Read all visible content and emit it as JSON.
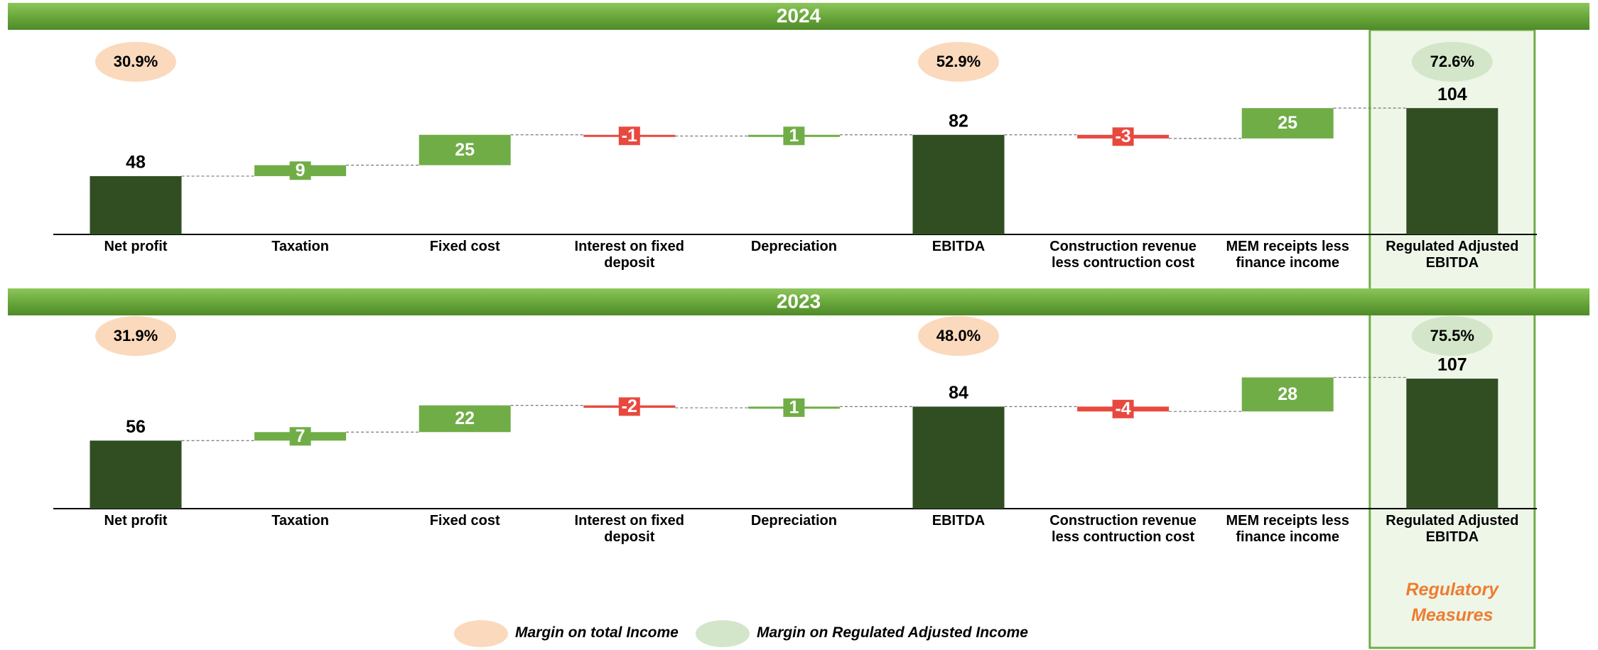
{
  "chart_data": [
    {
      "type": "waterfall",
      "title": "2024",
      "categories": [
        "Net profit",
        "Taxation",
        "Fixed cost",
        "Interest on fixed deposit",
        "Depreciation",
        "EBITDA",
        "Construction revenue less contruction cost",
        "MEM receipts less finance income",
        "Regulated Adjusted EBITDA"
      ],
      "values": [
        48,
        9,
        25,
        -1,
        1,
        82,
        -3,
        25,
        104
      ],
      "measure": [
        "absolute",
        "relative",
        "relative",
        "relative",
        "relative",
        "absolute",
        "relative",
        "relative",
        "absolute"
      ],
      "colors": {
        "total": "#314e23",
        "increase": "#70ad47",
        "decrease": "#e8493f"
      },
      "margins": [
        {
          "at": 0,
          "kind": 0,
          "value": 30.9,
          "label": "30.9%"
        },
        {
          "at": 5,
          "kind": 0,
          "value": 52.9,
          "label": "52.9%"
        },
        {
          "at": 8,
          "kind": 1,
          "value": 72.6,
          "label": "72.6%"
        }
      ]
    },
    {
      "type": "waterfall",
      "title": "2023",
      "categories": [
        "Net profit",
        "Taxation",
        "Fixed cost",
        "Interest on fixed deposit",
        "Depreciation",
        "EBITDA",
        "Construction revenue less contruction cost",
        "MEM receipts less finance income",
        "Regulated Adjusted EBITDA"
      ],
      "values": [
        56,
        7,
        22,
        -2,
        1,
        84,
        -4,
        28,
        107
      ],
      "measure": [
        "absolute",
        "relative",
        "relative",
        "relative",
        "relative",
        "absolute",
        "relative",
        "relative",
        "absolute"
      ],
      "colors": {
        "total": "#314e23",
        "increase": "#70ad47",
        "decrease": "#e8493f"
      },
      "margins": [
        {
          "at": 0,
          "kind": 0,
          "value": 31.9,
          "label": "31.9%"
        },
        {
          "at": 5,
          "kind": 0,
          "value": 48.0,
          "label": "48.0%"
        },
        {
          "at": 8,
          "kind": 1,
          "value": 75.5,
          "label": "75.5%"
        }
      ]
    }
  ],
  "legend": [
    {
      "name": "Margin on total Income",
      "color": "#fbd9bd"
    },
    {
      "name": "Margin on Regulated Adjusted Income",
      "color": "#d3e6c9"
    }
  ],
  "highlight": {
    "label": "Regulatory Measures",
    "at": 8
  }
}
